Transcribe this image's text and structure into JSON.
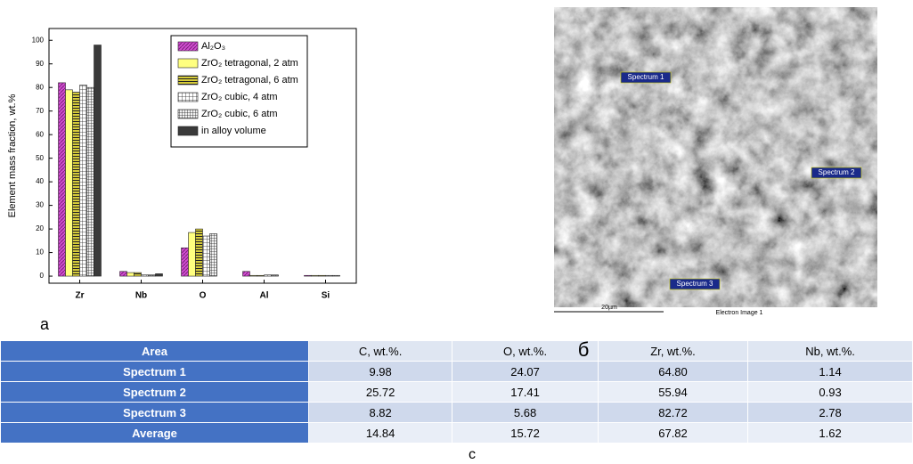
{
  "chart_data": {
    "type": "bar",
    "ylabel": "Element mass fraction, wt.%",
    "categories": [
      "Zr",
      "Nb",
      "O",
      "Al",
      "Si"
    ],
    "series": [
      {
        "name": "Al₂O₃",
        "color": "#d14fd1",
        "values": [
          82,
          2,
          12,
          2,
          0.3
        ]
      },
      {
        "name": "ZrO₂ tetragonal, 2 atm",
        "color": "#ffff80",
        "values": [
          79,
          1.5,
          18.5,
          0.3,
          0.3
        ]
      },
      {
        "name": "ZrO₂ tetragonal, 6 atm",
        "color": "#d6cc3a",
        "values": [
          78,
          1.5,
          20,
          0.3,
          0.3
        ]
      },
      {
        "name": "ZrO₂ cubic, 4 atm",
        "color": "#ffffff",
        "values": [
          81,
          0.5,
          17,
          0.5,
          0.3
        ]
      },
      {
        "name": "ZrO₂ cubic, 6 atm",
        "color": "#f2f2f2",
        "values": [
          80,
          0.5,
          18,
          0.5,
          0.3
        ]
      },
      {
        "name": "in alloy volume",
        "color": "#3a3a3a",
        "values": [
          98,
          1,
          null,
          null,
          null
        ]
      }
    ],
    "ylim": [
      -3,
      105
    ],
    "yticks": [
      0,
      10,
      20,
      30,
      40,
      50,
      60,
      70,
      80,
      90,
      100
    ]
  },
  "labels": {
    "a": "a",
    "b": "б",
    "c": "c"
  },
  "image": {
    "spectra": [
      "Spectrum 1",
      "Spectrum 2",
      "Spectrum 3"
    ],
    "scale": "20µm",
    "caption": "Electron Image 1"
  },
  "table": {
    "header": [
      "Area",
      "C, wt.%.",
      "O, wt.%.",
      "Zr, wt.%.",
      "Nb, wt.%."
    ],
    "rows": [
      [
        "Spectrum 1",
        "9.98",
        "24.07",
        "64.80",
        "1.14"
      ],
      [
        "Spectrum 2",
        "25.72",
        "17.41",
        "55.94",
        "0.93"
      ],
      [
        "Spectrum 3",
        "8.82",
        "5.68",
        "82.72",
        "2.78"
      ],
      [
        "Average",
        "14.84",
        "15.72",
        "67.82",
        "1.62"
      ]
    ]
  }
}
